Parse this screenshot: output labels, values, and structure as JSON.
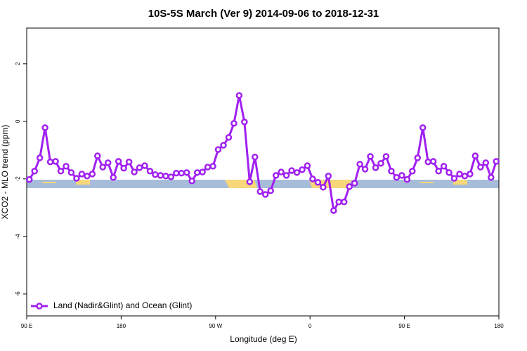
{
  "chart_data": {
    "type": "line",
    "title": "10S-5S March (Ver 9)   2014-09-06 to 2018-12-31",
    "xlabel": "Longitude (deg E)",
    "ylabel": "XCO2 - MLO trend (ppm)",
    "xlim": [
      90,
      540
    ],
    "xticks": [
      {
        "value": 90,
        "label": "90 E"
      },
      180,
      {
        "value": 270,
        "label": "90 W"
      },
      {
        "value": 360,
        "label": "0"
      },
      {
        "value": 450,
        "label": "90 E"
      },
      {
        "value": 540,
        "label": "180"
      }
    ],
    "ylim": [
      -6.76,
      3.24
    ],
    "yticks": [
      -6,
      -4,
      -2,
      0,
      2
    ],
    "legend": "bottom-left",
    "series": [
      {
        "name": "Land (Nadir&Glint) and Ocean (Glint)",
        "color": "#a020f0",
        "x": [
          92.5,
          97.5,
          102.5,
          107.5,
          112.5,
          117.5,
          122.5,
          127.5,
          132.5,
          137.5,
          142.5,
          147.5,
          152.5,
          157.5,
          162.5,
          167.5,
          172.5,
          177.5,
          182.5,
          187.5,
          192.5,
          197.5,
          202.5,
          207.5,
          212.5,
          217.5,
          222.5,
          227.5,
          232.5,
          237.5,
          242.5,
          247.5,
          252.5,
          257.5,
          262.5,
          267.5,
          272.5,
          277.5,
          282.5,
          287.5,
          292.5,
          297.5,
          302.5,
          307.5,
          312.5,
          317.5,
          322.5,
          327.5,
          332.5,
          337.5,
          342.5,
          347.5,
          352.5,
          357.5,
          362.5,
          367.5,
          372.5,
          377.5,
          382.5,
          387.5,
          392.5,
          397.5,
          402.5,
          407.5,
          412.5,
          417.5,
          422.5,
          427.5,
          432.5,
          437.5,
          442.5,
          447.5,
          452.5,
          457.5,
          462.5,
          467.5,
          472.5,
          477.5,
          482.5,
          487.5,
          492.5,
          497.5,
          502.5,
          507.5,
          512.5,
          517.5,
          522.5,
          527.5,
          532.5,
          537.5
        ],
        "values": [
          -2.02,
          -1.73,
          -1.27,
          -0.22,
          -1.41,
          -1.39,
          -1.73,
          -1.56,
          -1.78,
          -1.98,
          -1.83,
          -1.9,
          -1.83,
          -1.2,
          -1.59,
          -1.44,
          -1.95,
          -1.39,
          -1.63,
          -1.41,
          -1.76,
          -1.61,
          -1.54,
          -1.73,
          -1.85,
          -1.88,
          -1.9,
          -1.93,
          -1.8,
          -1.8,
          -1.78,
          -2.07,
          -1.78,
          -1.76,
          -1.59,
          -1.56,
          -0.98,
          -0.83,
          -0.56,
          -0.07,
          0.9,
          -0.02,
          -2.1,
          -1.24,
          -2.44,
          -2.54,
          -2.41,
          -1.88,
          -1.76,
          -1.88,
          -1.71,
          -1.78,
          -1.68,
          -1.54,
          -2.0,
          -2.12,
          -2.29,
          -1.9,
          -3.1,
          -2.8,
          -2.8,
          -2.27,
          -2.15,
          -1.49,
          -1.66,
          -1.22,
          -1.61,
          -1.46,
          -1.22,
          -1.73,
          -1.95,
          -1.88,
          -2.02,
          -1.73,
          -1.27,
          -0.22,
          -1.41,
          -1.39,
          -1.73,
          -1.56,
          -1.78,
          -1.98,
          -1.83,
          -1.9,
          -1.83,
          -1.2,
          -1.59,
          -1.44,
          -1.95,
          -1.39
        ]
      }
    ]
  }
}
